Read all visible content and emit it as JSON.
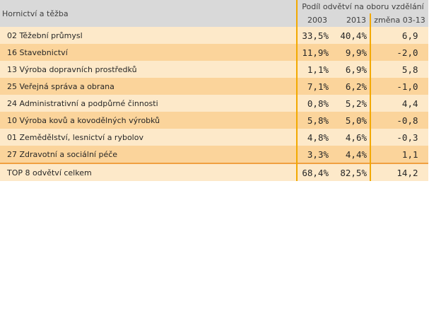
{
  "table": {
    "corner_label": "Hornictví a těžba",
    "group_label": "Podíl odvětví na oboru vzdělání",
    "columns": [
      "2003",
      "2013",
      "změna 03-13"
    ],
    "rows": [
      {
        "name": "02 Těžební průmysl",
        "v2003": "33,5%",
        "v2013": "40,4%",
        "change": "6,9"
      },
      {
        "name": "16 Stavebnictví",
        "v2003": "11,9%",
        "v2013": "9,9%",
        "change": "-2,0"
      },
      {
        "name": "13 Výroba dopravních prostředků",
        "v2003": "1,1%",
        "v2013": "6,9%",
        "change": "5,8"
      },
      {
        "name": "25 Veřejná správa a obrana",
        "v2003": "7,1%",
        "v2013": "6,2%",
        "change": "-1,0"
      },
      {
        "name": "24 Administrativní a podpůrné činnosti",
        "v2003": "0,8%",
        "v2013": "5,2%",
        "change": "4,4"
      },
      {
        "name": "10 Výroba kovů a kovodělných výrobků",
        "v2003": "5,8%",
        "v2013": "5,0%",
        "change": "-0,8"
      },
      {
        "name": "01 Zemědělství, lesnictví a rybolov",
        "v2003": "4,8%",
        "v2013": "4,6%",
        "change": "-0,3"
      },
      {
        "name": "27 Zdravotní a sociální péče",
        "v2003": "3,3%",
        "v2013": "4,4%",
        "change": "1,1"
      }
    ],
    "total": {
      "name": "TOP 8 odvětví celkem",
      "v2003": "68,4%",
      "v2013": "82,5%",
      "change": "14,2"
    }
  }
}
